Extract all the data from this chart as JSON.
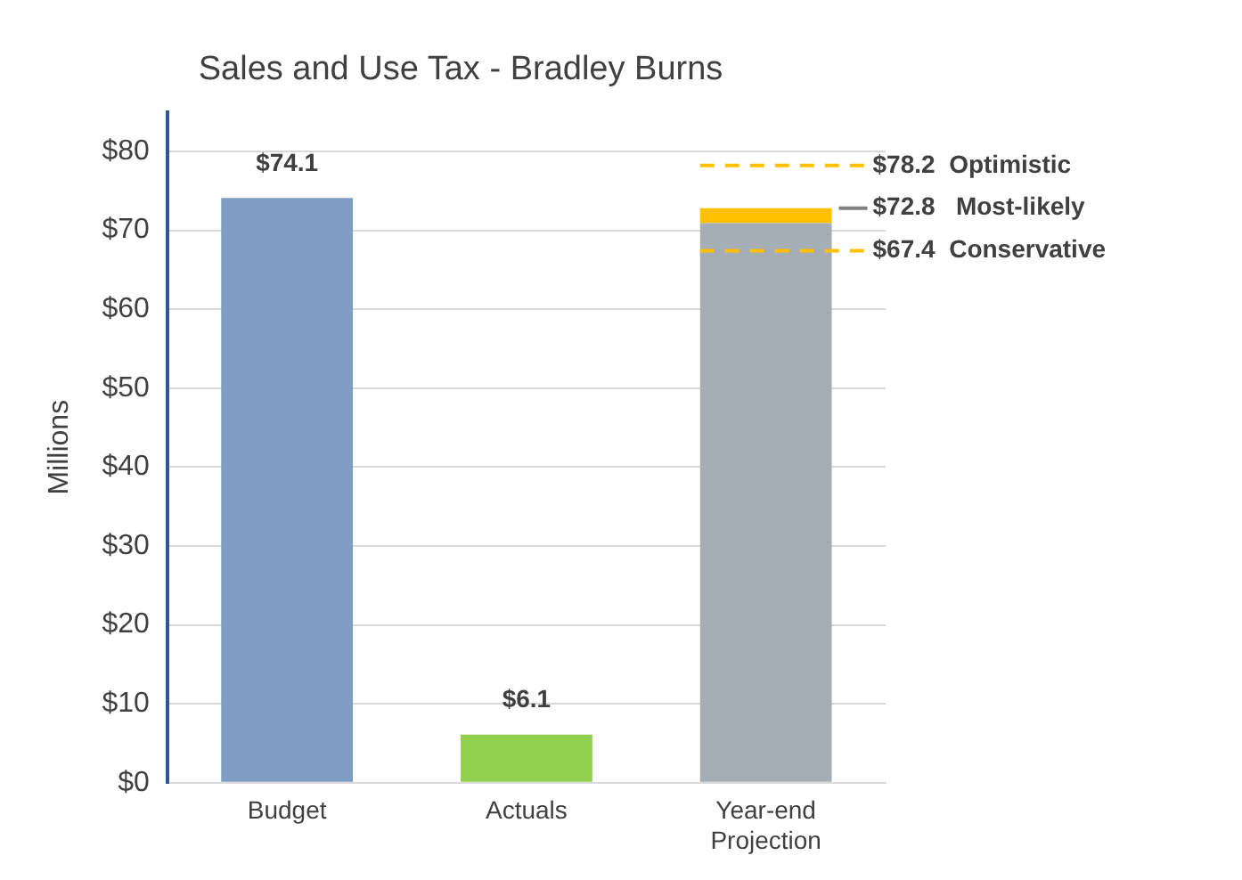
{
  "chart_data": {
    "type": "bar",
    "title": "Sales and Use Tax - Bradley Burns",
    "ylabel": "Millions",
    "categories": [
      "Budget",
      "Actuals",
      "Year-end Projection"
    ],
    "stacked": true,
    "series": [
      {
        "colors": [
          "#7f9dc4",
          "#92d050",
          "#a5adb5"
        ],
        "values": [
          74.1,
          6.1,
          70.9
        ],
        "value_labels": [
          "$74.1",
          "$6.1",
          null
        ]
      },
      {
        "color": "#ffc000",
        "values": [
          null,
          null,
          1.9
        ]
      }
    ],
    "ref_lines": [
      {
        "axis": "y",
        "value": 78.2,
        "label": "$78.2  Optimistic",
        "color": "#ffc000",
        "line_style": "dashed"
      },
      {
        "axis": "y",
        "value": 72.8,
        "label": "$72.8   Most-likely",
        "color": "#808080",
        "line_style": "solid"
      },
      {
        "axis": "y",
        "value": 67.4,
        "label": "$67.4  Conservative",
        "color": "#ffc000",
        "line_style": "dashed"
      }
    ],
    "ylim": [
      0,
      85
    ],
    "yticks": [
      {
        "value": 0,
        "label": "$0"
      },
      {
        "value": 10,
        "label": "$10"
      },
      {
        "value": 20,
        "label": "$20"
      },
      {
        "value": 30,
        "label": "$30"
      },
      {
        "value": 40,
        "label": "$40"
      },
      {
        "value": 50,
        "label": "$50"
      },
      {
        "value": 60,
        "label": "$60"
      },
      {
        "value": 70,
        "label": "$70"
      },
      {
        "value": 80,
        "label": "$80"
      }
    ],
    "grid": "y",
    "legend": false
  }
}
